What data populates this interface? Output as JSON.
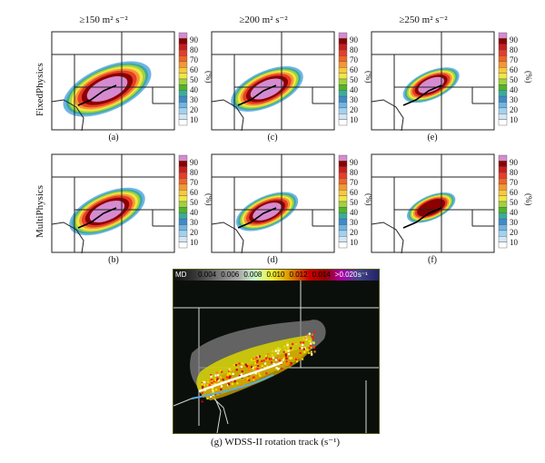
{
  "columns": [
    {
      "title": "≥150 m² s⁻²"
    },
    {
      "title": "≥200 m² s⁻²"
    },
    {
      "title": "≥250 m² s⁻²"
    }
  ],
  "rows": [
    {
      "label": "FixedPhysics"
    },
    {
      "label": "MultiPhysics"
    }
  ],
  "panels": [
    {
      "letter": "(a)"
    },
    {
      "letter": "(c)"
    },
    {
      "letter": "(e)"
    },
    {
      "letter": "(b)"
    },
    {
      "letter": "(d)"
    },
    {
      "letter": "(f)"
    }
  ],
  "colorbar": {
    "unit": "(%)",
    "ticks": [
      "90",
      "80",
      "70",
      "60",
      "50",
      "40",
      "30",
      "20",
      "10"
    ],
    "colors": [
      "#d58bd0",
      "#8b0000",
      "#c81e1e",
      "#e83c28",
      "#f06428",
      "#f59632",
      "#fac83c",
      "#f0e646",
      "#a0d23c",
      "#50b428",
      "#3caaa0",
      "#3c8cc8",
      "#6eb4e6",
      "#a0d2f0",
      "#d2e6f5",
      "#ffffff"
    ]
  },
  "bottom_panel": {
    "legend_ticks": [
      "MD",
      "0.004",
      "0.006",
      "0.008",
      "0.010",
      "0.012",
      "0.014",
      ">0.020",
      "s⁻¹"
    ],
    "caption": "(g) WDSS-II rotation track (s⁻¹)"
  }
}
